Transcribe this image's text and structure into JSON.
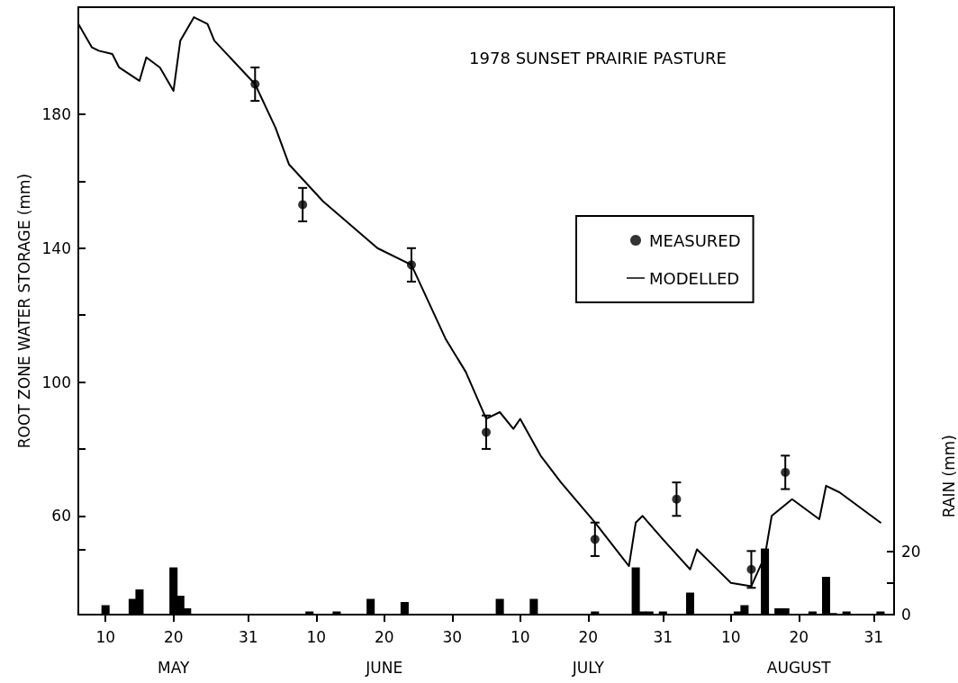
{
  "chart_data": {
    "type": "line",
    "title": "1978 SUNSET PRAIRIE PASTURE",
    "ylabel": "ROOT ZONE WATER STORAGE (mm)",
    "y2label": "RAIN (mm)",
    "xlim": [
      "1978-05-06",
      "1978-09-03"
    ],
    "xticks": [
      {
        "value": "1978-05-10",
        "label": "10"
      },
      {
        "value": "1978-05-20",
        "label": "20\nMAY"
      },
      {
        "value": "1978-05-31",
        "label": "31"
      },
      {
        "value": "1978-06-10",
        "label": "10"
      },
      {
        "value": "1978-06-20",
        "label": "20\nJUNE"
      },
      {
        "value": "1978-06-30",
        "label": "30"
      },
      {
        "value": "1978-07-10",
        "label": "10"
      },
      {
        "value": "1978-07-20",
        "label": "20\nJULY"
      },
      {
        "value": "1978-07-31",
        "label": "31"
      },
      {
        "value": "1978-08-10",
        "label": "10"
      },
      {
        "value": "1978-08-20",
        "label": "20\nAUGUST"
      },
      {
        "value": "1978-08-31",
        "label": "31"
      }
    ],
    "ylim": [
      30.5,
      212
    ],
    "yticks": [
      {
        "value": 50,
        "label": null
      },
      60,
      {
        "value": 80,
        "label": null
      },
      100,
      {
        "value": 120,
        "label": null
      },
      140,
      {
        "value": 160,
        "label": null
      },
      180
    ],
    "y2lim": [
      0,
      193
    ],
    "y2ticks": [
      0,
      {
        "value": 10,
        "label": null
      },
      20
    ],
    "legend": "right",
    "series": [
      {
        "name": "MEASURED",
        "type": "scatter",
        "color": "#000000",
        "marker": "circle",
        "x": [
          "1978-06-01",
          "1978-06-08",
          "1978-06-24",
          "1978-07-05",
          "1978-07-21",
          "1978-08-02",
          "1978-08-13",
          "1978-08-18"
        ],
        "values": [
          189,
          153,
          135,
          85,
          53,
          65,
          44,
          73
        ],
        "errors": [
          5,
          5,
          5,
          5,
          5,
          5,
          5.5,
          5
        ]
      },
      {
        "name": "MODELLED",
        "color": "#000000",
        "marker": "none",
        "line_style": "solid",
        "x": [
          "1978-05-06",
          "1978-05-08",
          "1978-05-09",
          "1978-05-11",
          "1978-05-12",
          "1978-05-15",
          "1978-05-16",
          "1978-05-18",
          "1978-05-20",
          "1978-05-21",
          "1978-05-23",
          "1978-05-25",
          "1978-05-26",
          "1978-06-01",
          "1978-06-04",
          "1978-06-06",
          "1978-06-11",
          "1978-06-19",
          "1978-06-24",
          "1978-06-29",
          "1978-07-02",
          "1978-07-05",
          "1978-07-07",
          "1978-07-09",
          "1978-07-10",
          "1978-07-13",
          "1978-07-16",
          "1978-07-21",
          "1978-07-26",
          "1978-07-27",
          "1978-07-28",
          "1978-07-31",
          "1978-08-04",
          "1978-08-05",
          "1978-08-07",
          "1978-08-10",
          "1978-08-13",
          "1978-08-15",
          "1978-08-16",
          "1978-08-19",
          "1978-08-23",
          "1978-08-24",
          "1978-08-26",
          "1978-09-01"
        ],
        "values": [
          207,
          200,
          199,
          198,
          194,
          190,
          197,
          194,
          187,
          202,
          209,
          207,
          202,
          189,
          176,
          165,
          154,
          140,
          135,
          113,
          103,
          89,
          91,
          86,
          89,
          78,
          70,
          58,
          45,
          58,
          60,
          53,
          44,
          50,
          46,
          40,
          39,
          48,
          60,
          65,
          59,
          69,
          67,
          58
        ]
      },
      {
        "type": "bar",
        "axis": "y2",
        "color": "#000000",
        "x": [
          "1978-05-10",
          "1978-05-14",
          "1978-05-15",
          "1978-05-20",
          "1978-05-21",
          "1978-05-22",
          "1978-06-09",
          "1978-06-13",
          "1978-06-18",
          "1978-06-23",
          "1978-07-07",
          "1978-07-12",
          "1978-07-21",
          "1978-07-27",
          "1978-07-28",
          "1978-07-29",
          "1978-07-31",
          "1978-08-04",
          "1978-08-11",
          "1978-08-12",
          "1978-08-15",
          "1978-08-17",
          "1978-08-18",
          "1978-08-22",
          "1978-08-24",
          "1978-08-25",
          "1978-08-27",
          "1978-09-01"
        ],
        "values": [
          3,
          5,
          8,
          15,
          6,
          2,
          1,
          1,
          5,
          4,
          5,
          5,
          1,
          15,
          1,
          1,
          1,
          7,
          1,
          3,
          21,
          2,
          2,
          1,
          12,
          0.5,
          1,
          1
        ]
      }
    ]
  }
}
